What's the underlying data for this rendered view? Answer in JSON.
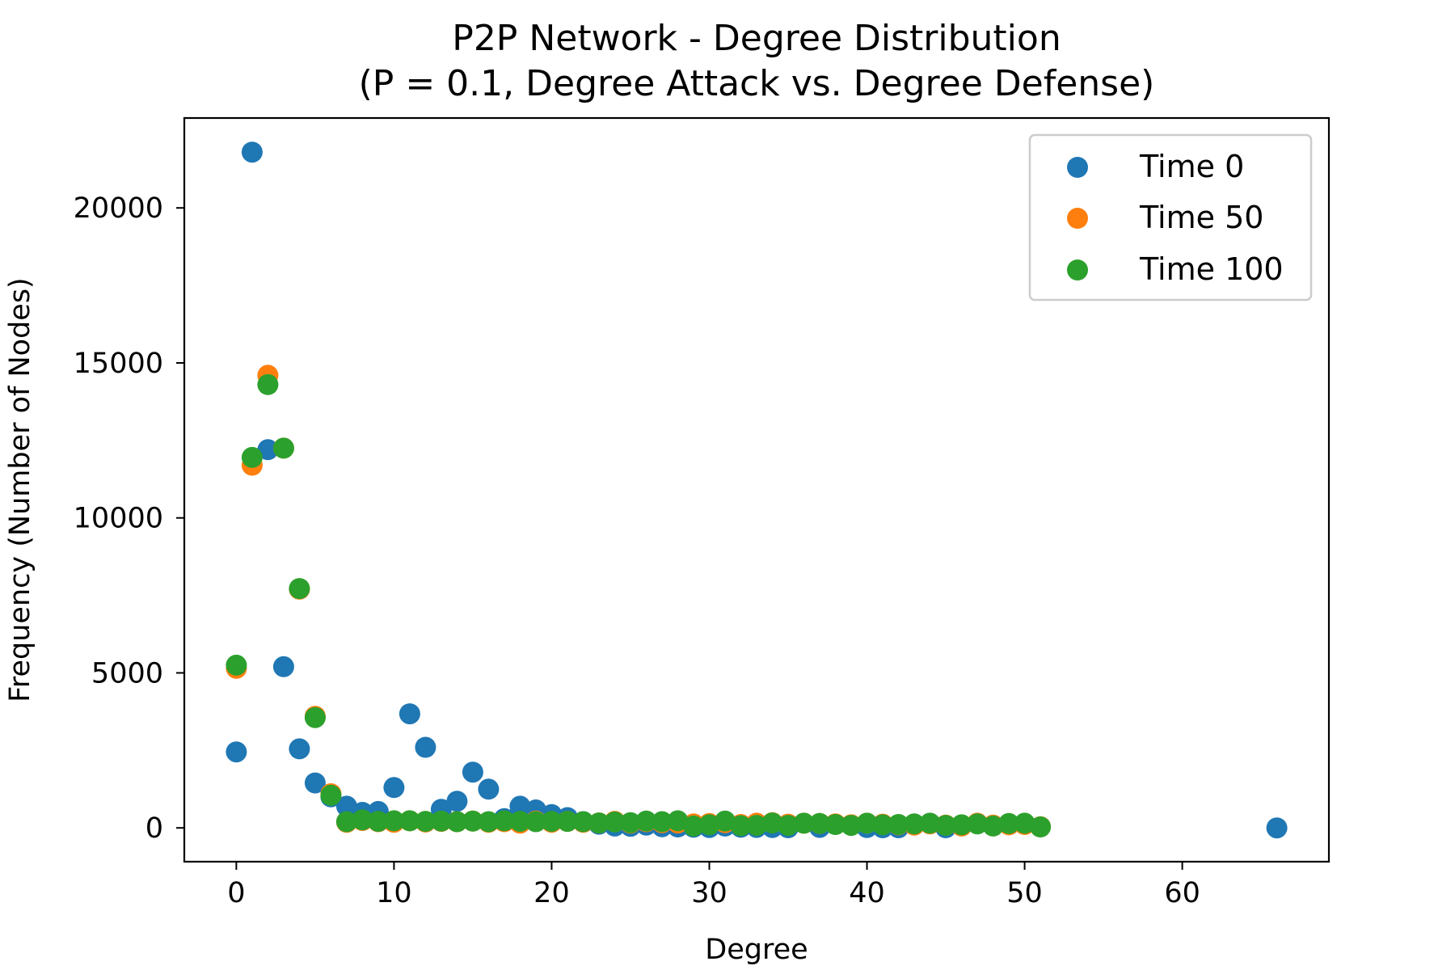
{
  "chart_data": {
    "type": "scatter",
    "title": "P2P Network - Degree Distribution",
    "subtitle": "(P = 0.1, Degree Attack vs. Degree Defense)",
    "xlabel": "Degree",
    "ylabel": "Frequency (Number of Nodes)",
    "xlim": [
      -3.3,
      69.3
    ],
    "ylim": [
      -1090,
      22900
    ],
    "xticks": [
      0,
      10,
      20,
      30,
      40,
      50,
      60
    ],
    "yticks": [
      0,
      5000,
      10000,
      15000,
      20000
    ],
    "grid": false,
    "legend_position": "top-right",
    "series": [
      {
        "name": "Time 0",
        "color": "#1f77b4",
        "points": [
          [
            0,
            2450
          ],
          [
            1,
            21800
          ],
          [
            2,
            12200
          ],
          [
            3,
            5200
          ],
          [
            4,
            2550
          ],
          [
            5,
            1450
          ],
          [
            6,
            1000
          ],
          [
            7,
            700
          ],
          [
            8,
            500
          ],
          [
            9,
            530
          ],
          [
            10,
            1300
          ],
          [
            11,
            3680
          ],
          [
            12,
            2600
          ],
          [
            13,
            600
          ],
          [
            14,
            860
          ],
          [
            15,
            1800
          ],
          [
            16,
            1250
          ],
          [
            17,
            300
          ],
          [
            18,
            700
          ],
          [
            19,
            580
          ],
          [
            20,
            430
          ],
          [
            21,
            330
          ],
          [
            22,
            200
          ],
          [
            23,
            120
          ],
          [
            24,
            60
          ],
          [
            25,
            50
          ],
          [
            26,
            90
          ],
          [
            27,
            40
          ],
          [
            28,
            30
          ],
          [
            29,
            20
          ],
          [
            30,
            10
          ],
          [
            31,
            60
          ],
          [
            32,
            20
          ],
          [
            33,
            15
          ],
          [
            34,
            10
          ],
          [
            35,
            5
          ],
          [
            37,
            15
          ],
          [
            40,
            10
          ],
          [
            41,
            5
          ],
          [
            42,
            5
          ],
          [
            45,
            5
          ],
          [
            66,
            0
          ]
        ]
      },
      {
        "name": "Time 50",
        "color": "#ff7f0e",
        "points": [
          [
            0,
            5150
          ],
          [
            1,
            11700
          ],
          [
            2,
            14600
          ],
          [
            3,
            12250
          ],
          [
            4,
            7700
          ],
          [
            5,
            3600
          ],
          [
            6,
            1100
          ],
          [
            7,
            180
          ],
          [
            8,
            240
          ],
          [
            9,
            200
          ],
          [
            10,
            180
          ],
          [
            11,
            230
          ],
          [
            12,
            190
          ],
          [
            13,
            210
          ],
          [
            14,
            200
          ],
          [
            15,
            220
          ],
          [
            16,
            180
          ],
          [
            17,
            200
          ],
          [
            18,
            150
          ],
          [
            19,
            220
          ],
          [
            20,
            180
          ],
          [
            21,
            210
          ],
          [
            22,
            180
          ],
          [
            23,
            160
          ],
          [
            24,
            210
          ],
          [
            25,
            150
          ],
          [
            26,
            200
          ],
          [
            27,
            170
          ],
          [
            28,
            160
          ],
          [
            29,
            130
          ],
          [
            30,
            140
          ],
          [
            31,
            170
          ],
          [
            32,
            110
          ],
          [
            33,
            150
          ],
          [
            34,
            170
          ],
          [
            35,
            120
          ],
          [
            36,
            150
          ],
          [
            37,
            140
          ],
          [
            38,
            130
          ],
          [
            39,
            100
          ],
          [
            40,
            150
          ],
          [
            41,
            120
          ],
          [
            42,
            100
          ],
          [
            43,
            90
          ],
          [
            44,
            130
          ],
          [
            45,
            90
          ],
          [
            46,
            60
          ],
          [
            47,
            150
          ],
          [
            48,
            90
          ],
          [
            49,
            100
          ],
          [
            50,
            110
          ],
          [
            51,
            40
          ]
        ]
      },
      {
        "name": "Time 100",
        "color": "#2ca02c",
        "points": [
          [
            0,
            5250
          ],
          [
            1,
            11950
          ],
          [
            2,
            14300
          ],
          [
            3,
            12250
          ],
          [
            4,
            7720
          ],
          [
            5,
            3560
          ],
          [
            6,
            1050
          ],
          [
            7,
            200
          ],
          [
            8,
            260
          ],
          [
            9,
            210
          ],
          [
            10,
            230
          ],
          [
            11,
            230
          ],
          [
            12,
            210
          ],
          [
            13,
            220
          ],
          [
            14,
            200
          ],
          [
            15,
            220
          ],
          [
            16,
            200
          ],
          [
            17,
            230
          ],
          [
            18,
            210
          ],
          [
            19,
            200
          ],
          [
            20,
            210
          ],
          [
            21,
            210
          ],
          [
            22,
            200
          ],
          [
            23,
            160
          ],
          [
            24,
            190
          ],
          [
            25,
            170
          ],
          [
            26,
            220
          ],
          [
            27,
            200
          ],
          [
            28,
            230
          ],
          [
            29,
            60
          ],
          [
            30,
            100
          ],
          [
            31,
            220
          ],
          [
            32,
            70
          ],
          [
            33,
            80
          ],
          [
            34,
            160
          ],
          [
            35,
            80
          ],
          [
            36,
            150
          ],
          [
            37,
            140
          ],
          [
            38,
            110
          ],
          [
            39,
            80
          ],
          [
            40,
            150
          ],
          [
            41,
            100
          ],
          [
            42,
            110
          ],
          [
            43,
            130
          ],
          [
            44,
            150
          ],
          [
            45,
            80
          ],
          [
            46,
            100
          ],
          [
            47,
            130
          ],
          [
            48,
            60
          ],
          [
            49,
            140
          ],
          [
            50,
            150
          ],
          [
            51,
            30
          ]
        ]
      }
    ]
  }
}
